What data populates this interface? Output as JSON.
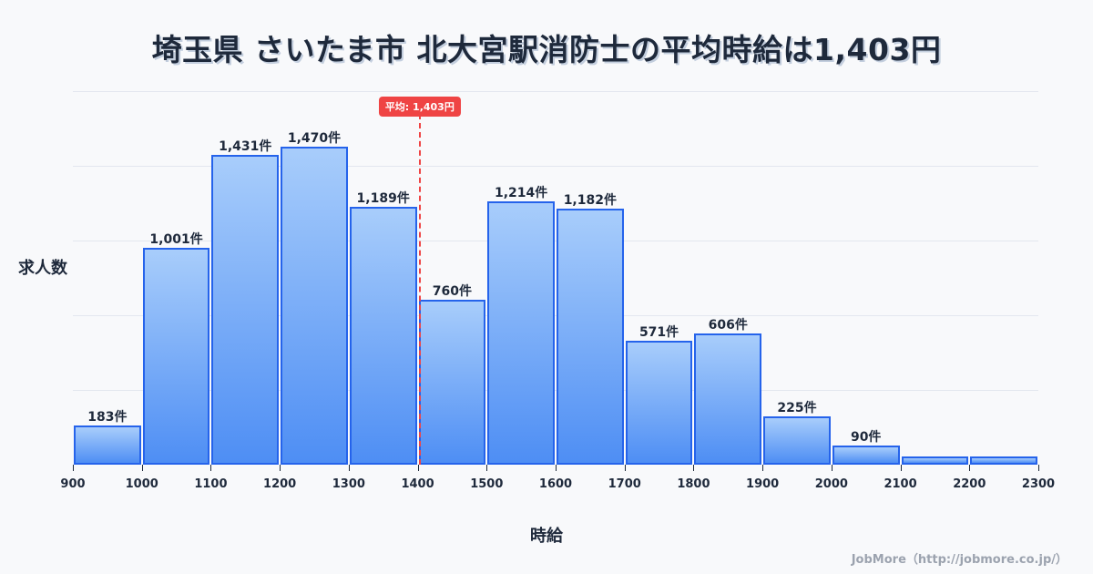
{
  "header": {
    "title": "埼玉県 さいたま市 北大宮駅消防士の平均時給は1,403円"
  },
  "axes": {
    "ylabel": "求人数",
    "xlabel": "時給"
  },
  "average": {
    "label": "平均: 1,403円",
    "value": 1403,
    "color": "#ef4444"
  },
  "footer": {
    "credit": "JobMore（http://jobmore.co.jp/）"
  },
  "colors": {
    "bar_border": "#2563eb",
    "bar_top": "#a8cdfb",
    "bar_bottom": "#4e8ef4",
    "background": "#f8f9fb"
  },
  "chart_data": {
    "type": "bar",
    "title": "埼玉県 さいたま市 北大宮駅消防士の平均時給は1,403円",
    "xlabel": "時給",
    "ylabel": "求人数",
    "categories": [
      "900-1000",
      "1000-1100",
      "1100-1200",
      "1200-1300",
      "1300-1400",
      "1400-1500",
      "1500-1600",
      "1600-1700",
      "1700-1800",
      "1800-1900",
      "1900-2000",
      "2000-2100",
      "2100-2200",
      "2200-2300"
    ],
    "bin_edges": [
      900,
      1000,
      1100,
      1200,
      1300,
      1400,
      1500,
      1600,
      1700,
      1800,
      1900,
      2000,
      2100,
      2200,
      2300
    ],
    "values": [
      183,
      1001,
      1431,
      1470,
      1189,
      760,
      1214,
      1182,
      571,
      606,
      225,
      90,
      40,
      40
    ],
    "labels": [
      "183件",
      "1,001件",
      "1,431件",
      "1,470件",
      "1,189件",
      "760件",
      "1,214件",
      "1,182件",
      "571件",
      "606件",
      "225件",
      "90件",
      "",
      ""
    ],
    "xticks": [
      "900",
      "1000",
      "1100",
      "1200",
      "1300",
      "1400",
      "1500",
      "1600",
      "1700",
      "1800",
      "1900",
      "2000",
      "2100",
      "2200",
      "2300"
    ],
    "xlim": [
      900,
      2300
    ],
    "ylim": [
      0,
      1725
    ],
    "grid": true,
    "annotations": [
      {
        "type": "vline",
        "x": 1403,
        "label": "平均: 1,403円"
      }
    ]
  }
}
